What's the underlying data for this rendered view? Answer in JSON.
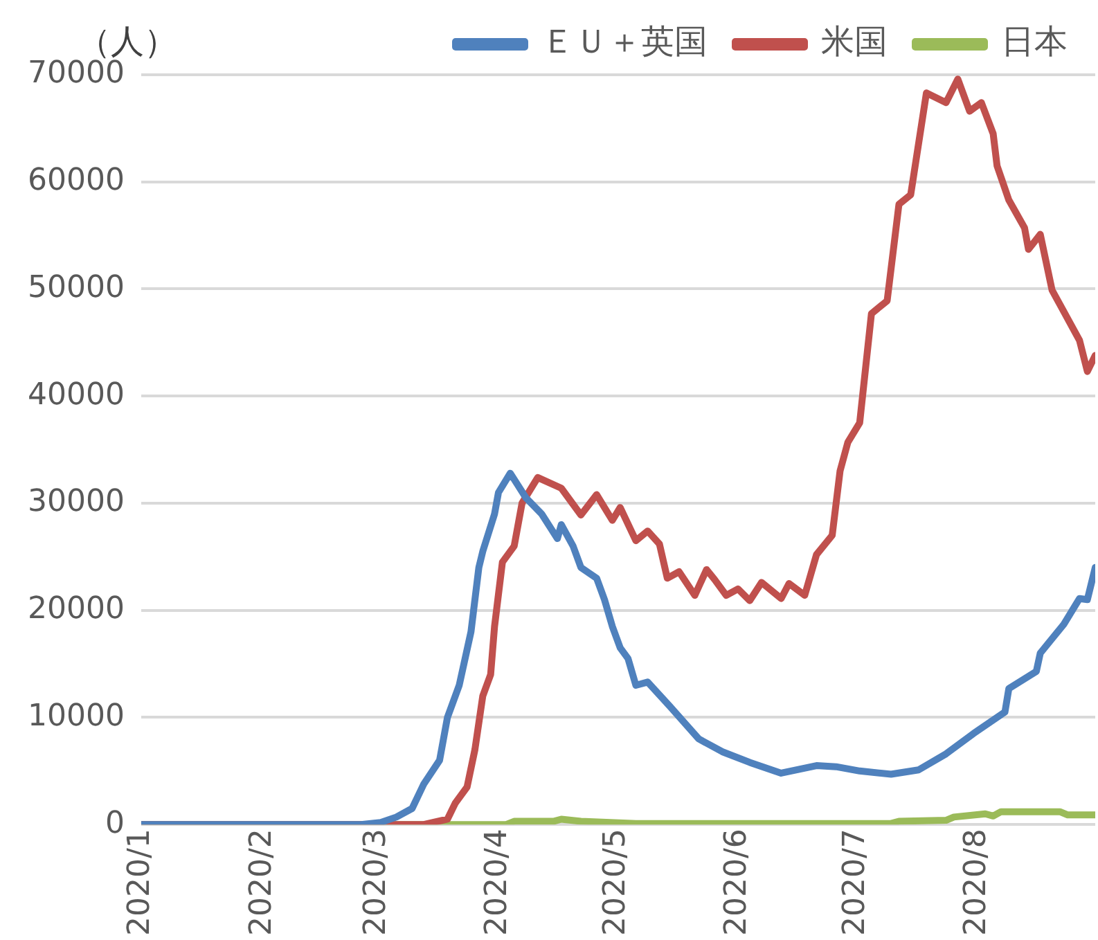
{
  "chart_data": {
    "type": "line",
    "ylabel": "（人）",
    "legend": "top",
    "grid": "y",
    "xlim": [
      "2020-01-01",
      "2020-08-31"
    ],
    "xticks": [
      {
        "value": "2020-01-01",
        "label": "2020/1"
      },
      {
        "value": "2020-02-01",
        "label": "2020/2"
      },
      {
        "value": "2020-03-01",
        "label": "2020/3"
      },
      {
        "value": "2020-04-01",
        "label": "2020/4"
      },
      {
        "value": "2020-05-01",
        "label": "2020/5"
      },
      {
        "value": "2020-06-01",
        "label": "2020/6"
      },
      {
        "value": "2020-07-01",
        "label": "2020/7"
      },
      {
        "value": "2020-08-01",
        "label": "2020/8"
      }
    ],
    "ylim": [
      0,
      70000
    ],
    "yticks": [
      0,
      10000,
      20000,
      30000,
      40000,
      50000,
      60000,
      70000
    ],
    "series": [
      {
        "name": "ＥＵ＋英国",
        "color": "#4f81bd",
        "x": [
          "2020-01-01",
          "2020-02-26",
          "2020-03-02",
          "2020-03-06",
          "2020-03-10",
          "2020-03-13",
          "2020-03-17",
          "2020-03-19",
          "2020-03-22",
          "2020-03-25",
          "2020-03-27",
          "2020-03-28",
          "2020-03-31",
          "2020-04-01",
          "2020-04-04",
          "2020-04-08",
          "2020-04-12",
          "2020-04-16",
          "2020-04-17",
          "2020-04-20",
          "2020-04-22",
          "2020-04-26",
          "2020-04-28",
          "2020-04-30",
          "2020-05-02",
          "2020-05-04",
          "2020-05-06",
          "2020-05-09",
          "2020-05-15",
          "2020-05-22",
          "2020-05-28",
          "2020-06-04",
          "2020-06-12",
          "2020-06-21",
          "2020-06-26",
          "2020-07-02",
          "2020-07-10",
          "2020-07-17",
          "2020-07-24",
          "2020-07-31",
          "2020-08-08",
          "2020-08-09",
          "2020-08-16",
          "2020-08-17",
          "2020-08-23",
          "2020-08-27",
          "2020-08-29",
          "2020-08-31"
        ],
        "values": [
          0,
          0,
          200,
          700,
          1500,
          3800,
          6000,
          10000,
          13000,
          18000,
          24000,
          25500,
          29000,
          31000,
          32800,
          30500,
          29000,
          26700,
          28000,
          26000,
          24000,
          23000,
          21000,
          18500,
          16500,
          15500,
          13000,
          13300,
          10900,
          8000,
          6800,
          5800,
          4800,
          5500,
          5400,
          5000,
          4700,
          5100,
          6600,
          8500,
          10500,
          12700,
          14300,
          16000,
          18700,
          21100,
          21000,
          24000
        ]
      },
      {
        "name": "米国",
        "color": "#c0504d",
        "x": [
          "2020-01-01",
          "2020-03-13",
          "2020-03-19",
          "2020-03-21",
          "2020-03-24",
          "2020-03-26",
          "2020-03-28",
          "2020-03-30",
          "2020-03-31",
          "2020-04-02",
          "2020-04-05",
          "2020-04-07",
          "2020-04-11",
          "2020-04-17",
          "2020-04-22",
          "2020-04-26",
          "2020-04-30",
          "2020-05-02",
          "2020-05-06",
          "2020-05-09",
          "2020-05-12",
          "2020-05-14",
          "2020-05-17",
          "2020-05-21",
          "2020-05-24",
          "2020-05-26",
          "2020-05-29",
          "2020-06-01",
          "2020-06-04",
          "2020-06-07",
          "2020-06-12",
          "2020-06-14",
          "2020-06-18",
          "2020-06-21",
          "2020-06-25",
          "2020-06-27",
          "2020-06-29",
          "2020-07-02",
          "2020-07-05",
          "2020-07-09",
          "2020-07-12",
          "2020-07-15",
          "2020-07-19",
          "2020-07-24",
          "2020-07-27",
          "2020-07-30",
          "2020-08-02",
          "2020-08-05",
          "2020-08-06",
          "2020-08-09",
          "2020-08-13",
          "2020-08-14",
          "2020-08-17",
          "2020-08-20",
          "2020-08-27",
          "2020-08-29",
          "2020-08-31"
        ],
        "values": [
          0,
          0,
          500,
          2000,
          3500,
          7000,
          12000,
          14000,
          18500,
          24500,
          26000,
          30000,
          32400,
          31400,
          28900,
          30800,
          28400,
          29600,
          26500,
          27400,
          26200,
          23000,
          23600,
          21400,
          23800,
          22900,
          21400,
          22000,
          20900,
          22600,
          21100,
          22500,
          21400,
          25200,
          27000,
          33000,
          35700,
          37500,
          47700,
          48900,
          57900,
          58800,
          68300,
          67400,
          69600,
          66600,
          67400,
          64500,
          61500,
          58300,
          55700,
          53700,
          55100,
          49900,
          45200,
          42300,
          43800
        ]
      },
      {
        "name": "日本",
        "color": "#9bbb59",
        "x": [
          "2020-01-01",
          "2020-04-03",
          "2020-04-05",
          "2020-04-15",
          "2020-04-17",
          "2020-04-22",
          "2020-05-06",
          "2020-07-10",
          "2020-07-12",
          "2020-07-24",
          "2020-07-26",
          "2020-08-03",
          "2020-08-05",
          "2020-08-07",
          "2020-08-22",
          "2020-08-24",
          "2020-08-31"
        ],
        "values": [
          0,
          0,
          300,
          300,
          500,
          300,
          100,
          100,
          300,
          400,
          700,
          1000,
          800,
          1200,
          1200,
          900,
          900
        ]
      }
    ]
  }
}
